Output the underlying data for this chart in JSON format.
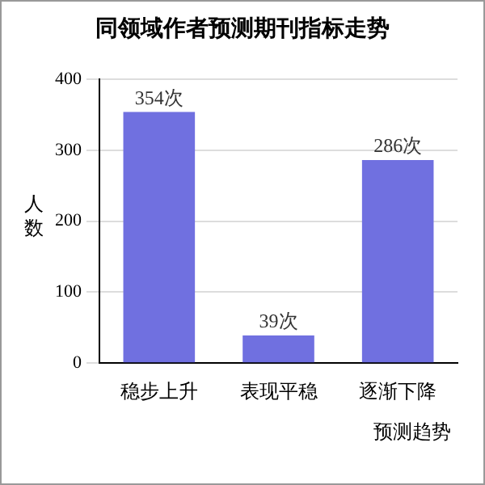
{
  "chart_data": {
    "type": "bar",
    "title": "同领域作者预测期刊指标走势",
    "xlabel": "预测趋势",
    "ylabel": "人数",
    "categories": [
      "稳步上升",
      "表现平稳",
      "逐渐下降"
    ],
    "values": [
      354,
      39,
      286
    ],
    "value_labels": [
      "354次",
      "39次",
      "286次"
    ],
    "color": "#7070e0",
    "ylim": [
      0,
      400
    ],
    "yticks": [
      0,
      100,
      200,
      300,
      400
    ],
    "grid": "y"
  }
}
